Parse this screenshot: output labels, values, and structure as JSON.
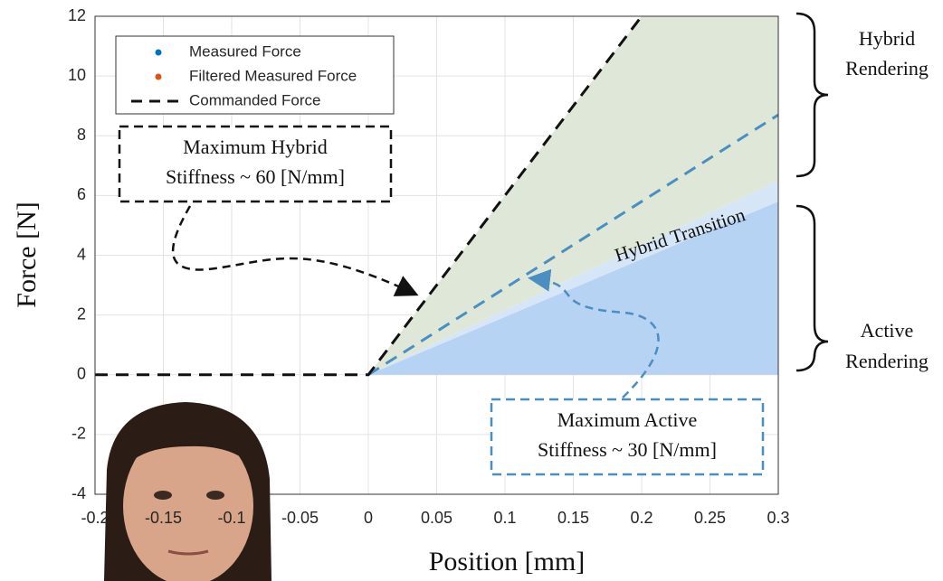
{
  "chart_data": {
    "type": "line",
    "xlabel": "Position [mm]",
    "ylabel": "Force [N]",
    "xlim": [
      -0.2,
      0.3
    ],
    "ylim": [
      -4,
      12
    ],
    "xticks": [
      -0.2,
      -0.15,
      -0.1,
      -0.05,
      0,
      0.05,
      0.1,
      0.15,
      0.2,
      0.25,
      0.3
    ],
    "yticks": [
      -4,
      -2,
      0,
      2,
      4,
      6,
      8,
      10,
      12
    ],
    "grid": true,
    "legend": "upper left",
    "series": [
      {
        "name": "Measured Force",
        "color": "#0072bd",
        "x": [],
        "values": []
      },
      {
        "name": "Filtered Measured Force",
        "color": "#d95319",
        "x": [],
        "values": []
      },
      {
        "name": "Commanded Force",
        "color": "#111111",
        "dash": true,
        "x": [
          -0.2,
          0,
          0.2
        ],
        "values": [
          0,
          0,
          12
        ]
      }
    ],
    "active_limit": {
      "color": "#4a8ec2",
      "x": [
        0,
        0.3
      ],
      "values": [
        0,
        8.7
      ]
    },
    "regions": [
      {
        "color": "#dfe8d8",
        "x": [
          0,
          0.2,
          0.3,
          0.3
        ],
        "values": [
          0,
          12,
          12,
          6.5
        ]
      },
      {
        "color": "#d6e6f7",
        "x": [
          0,
          0.3,
          0.3
        ],
        "values": [
          0,
          6.5,
          5.8
        ]
      },
      {
        "color": "#b7d3f3",
        "x": [
          0,
          0.3,
          0.3
        ],
        "values": [
          0,
          5.8,
          0
        ]
      }
    ],
    "annotations": {
      "hybrid_stiffness": [
        "Maximum Hybrid",
        "Stiffness ~ 60 [N/mm]"
      ],
      "active_stiffness": [
        "Maximum Active",
        "Stiffness ~ 30 [N/mm]"
      ],
      "transition": "Hybrid Transition",
      "hybrid_rendering": [
        "Hybrid",
        "Rendering"
      ],
      "active_rendering": [
        "Active",
        "Rendering"
      ]
    }
  }
}
